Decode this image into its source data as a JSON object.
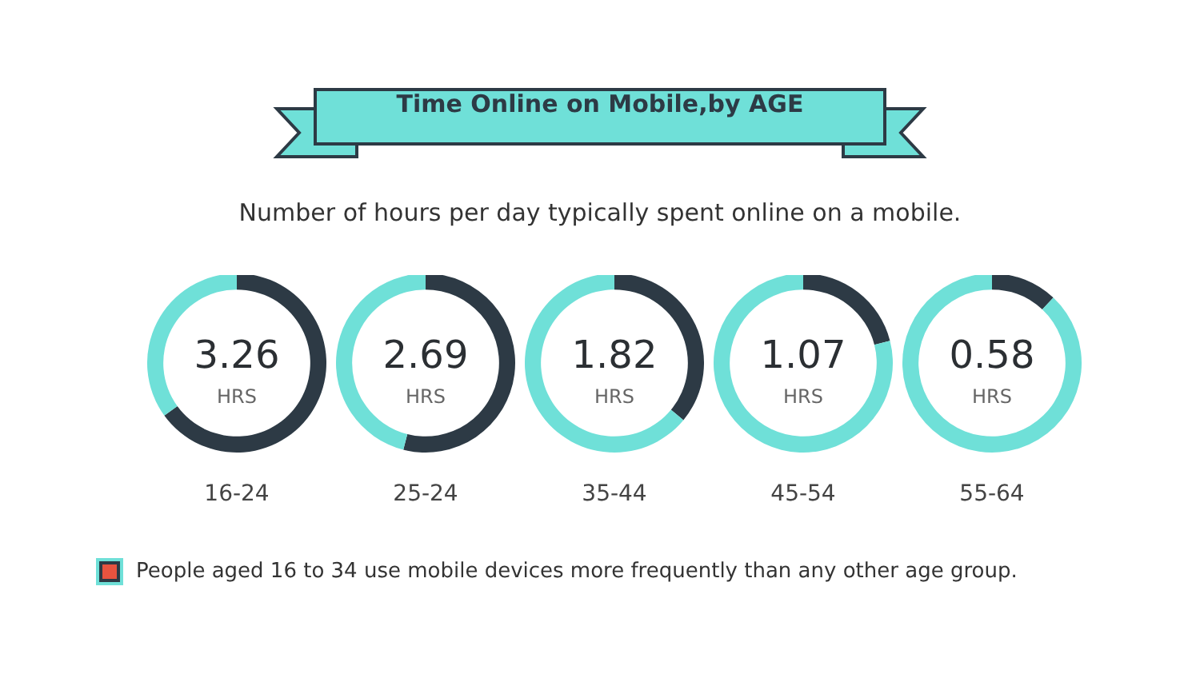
{
  "chart_data": [
    {
      "type": "other",
      "title": "Time Online on Mobile,by AGE",
      "subtitle": "Number of hours per day typically spent online on a mobile."
    },
    {
      "type": "donut",
      "categories": [
        null,
        null
      ],
      "values": [
        65,
        35
      ],
      "colors": [
        "#2d3a45",
        "#6fe0d8"
      ],
      "annotations": [
        "3.26",
        "HRS"
      ],
      "xlabel": "16-24"
    },
    {
      "type": "donut",
      "categories": [
        null,
        null
      ],
      "values": [
        54,
        46
      ],
      "colors": [
        "#2d3a45",
        "#6fe0d8"
      ],
      "annotations": [
        "2.69",
        "HRS"
      ],
      "xlabel": "25-24"
    },
    {
      "type": "donut",
      "categories": [
        null,
        null
      ],
      "values": [
        36,
        64
      ],
      "colors": [
        "#2d3a45",
        "#6fe0d8"
      ],
      "annotations": [
        "1.82",
        "HRS"
      ],
      "xlabel": "35-44"
    },
    {
      "type": "donut",
      "categories": [
        null,
        null
      ],
      "values": [
        21,
        79
      ],
      "colors": [
        "#2d3a45",
        "#6fe0d8"
      ],
      "annotations": [
        "1.07",
        "HRS"
      ],
      "xlabel": "45-54"
    },
    {
      "type": "donut",
      "categories": [
        null,
        null
      ],
      "values": [
        12,
        88
      ],
      "colors": [
        "#2d3a45",
        "#6fe0d8"
      ],
      "annotations": [
        "0.58",
        "HRS"
      ],
      "xlabel": "55-64"
    },
    {
      "type": "other",
      "annotations": [
        "People aged 16 to 34 use mobile devices more frequently than any other age group."
      ]
    }
  ]
}
